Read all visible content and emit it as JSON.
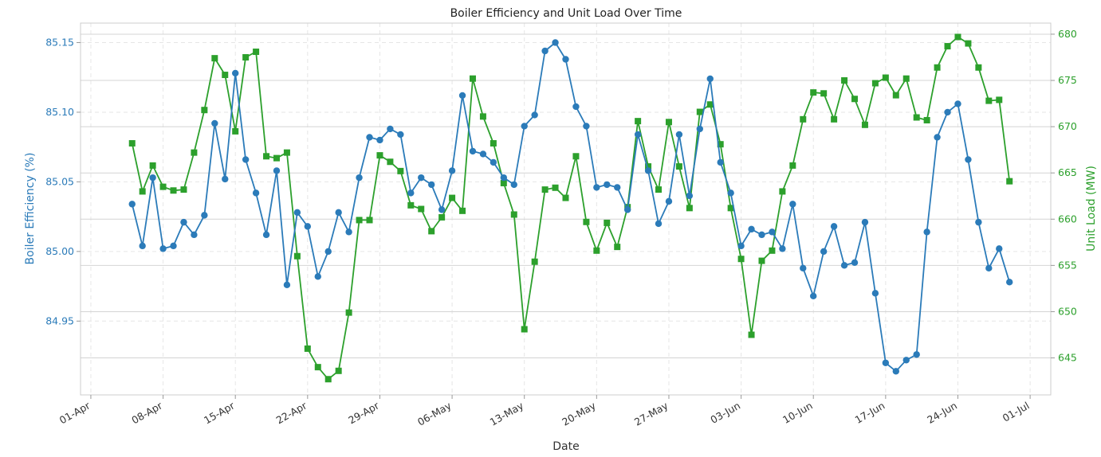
{
  "chart_data": {
    "type": "line",
    "title": "Boiler Efficiency and Unit Load Over Time",
    "xlabel": "Date",
    "ylabel_left": "Boiler Efficiency (%)",
    "ylabel_right": "Unit Load (MW)",
    "x_ticks": [
      {
        "date": "2024-04-01",
        "label": "01-Apr"
      },
      {
        "date": "2024-04-08",
        "label": "08-Apr"
      },
      {
        "date": "2024-04-15",
        "label": "15-Apr"
      },
      {
        "date": "2024-04-22",
        "label": "22-Apr"
      },
      {
        "date": "2024-04-29",
        "label": "29-Apr"
      },
      {
        "date": "2024-05-06",
        "label": "06-May"
      },
      {
        "date": "2024-05-13",
        "label": "13-May"
      },
      {
        "date": "2024-05-20",
        "label": "20-May"
      },
      {
        "date": "2024-05-27",
        "label": "27-May"
      },
      {
        "date": "2024-06-03",
        "label": "03-Jun"
      },
      {
        "date": "2024-06-10",
        "label": "10-Jun"
      },
      {
        "date": "2024-06-17",
        "label": "17-Jun"
      },
      {
        "date": "2024-06-24",
        "label": "24-Jun"
      },
      {
        "date": "2024-07-01",
        "label": "01-Jul"
      }
    ],
    "xlim": [
      "2024-03-31",
      "2024-07-03"
    ],
    "y_left": {
      "lim": [
        84.897,
        85.164
      ],
      "ticks": [
        84.95,
        85.0,
        85.05,
        85.1,
        85.15
      ],
      "tick_labels": [
        "84.95",
        "85.00",
        "85.05",
        "85.10",
        "85.15"
      ]
    },
    "y_right": {
      "lim": [
        641.0,
        681.2
      ],
      "ticks": [
        645,
        650,
        655,
        660,
        665,
        670,
        675,
        680
      ],
      "tick_labels": [
        "645",
        "650",
        "655",
        "660",
        "665",
        "670",
        "675",
        "680"
      ]
    },
    "grid": true,
    "dates": [
      "2024-04-05",
      "2024-04-06",
      "2024-04-07",
      "2024-04-08",
      "2024-04-09",
      "2024-04-10",
      "2024-04-11",
      "2024-04-12",
      "2024-04-13",
      "2024-04-14",
      "2024-04-15",
      "2024-04-16",
      "2024-04-17",
      "2024-04-18",
      "2024-04-19",
      "2024-04-20",
      "2024-04-21",
      "2024-04-22",
      "2024-04-23",
      "2024-04-24",
      "2024-04-25",
      "2024-04-26",
      "2024-04-27",
      "2024-04-28",
      "2024-04-29",
      "2024-04-30",
      "2024-05-01",
      "2024-05-02",
      "2024-05-03",
      "2024-05-04",
      "2024-05-05",
      "2024-05-06",
      "2024-05-07",
      "2024-05-08",
      "2024-05-09",
      "2024-05-10",
      "2024-05-11",
      "2024-05-12",
      "2024-05-13",
      "2024-05-14",
      "2024-05-15",
      "2024-05-16",
      "2024-05-17",
      "2024-05-18",
      "2024-05-19",
      "2024-05-20",
      "2024-05-21",
      "2024-05-22",
      "2024-05-23",
      "2024-05-24",
      "2024-05-25",
      "2024-05-26",
      "2024-05-27",
      "2024-05-28",
      "2024-05-29",
      "2024-05-30",
      "2024-05-31",
      "2024-06-01",
      "2024-06-02",
      "2024-06-03",
      "2024-06-04",
      "2024-06-05",
      "2024-06-06",
      "2024-06-07",
      "2024-06-08",
      "2024-06-09",
      "2024-06-10",
      "2024-06-11",
      "2024-06-12",
      "2024-06-13",
      "2024-06-14",
      "2024-06-15",
      "2024-06-16",
      "2024-06-17",
      "2024-06-18",
      "2024-06-19",
      "2024-06-20",
      "2024-06-21",
      "2024-06-22",
      "2024-06-23",
      "2024-06-24",
      "2024-06-25",
      "2024-06-26",
      "2024-06-27",
      "2024-06-28",
      "2024-06-29"
    ],
    "series": [
      {
        "name": "Boiler Efficiency (%)",
        "axis": "left",
        "color": "#2b7bb9",
        "marker": "circle",
        "values": [
          85.034,
          85.004,
          85.053,
          85.002,
          85.004,
          85.021,
          85.012,
          85.026,
          85.092,
          85.052,
          85.128,
          85.066,
          85.042,
          85.012,
          85.058,
          84.976,
          85.028,
          85.018,
          84.982,
          85.0,
          85.028,
          85.014,
          85.053,
          85.082,
          85.08,
          85.088,
          85.084,
          85.042,
          85.053,
          85.048,
          85.03,
          85.058,
          85.112,
          85.072,
          85.07,
          85.064,
          85.053,
          85.048,
          85.09,
          85.098,
          85.144,
          85.15,
          85.138,
          85.104,
          85.09,
          85.046,
          85.048,
          85.046,
          85.03,
          85.084,
          85.058,
          85.02,
          85.036,
          85.084,
          85.04,
          85.088,
          85.124,
          85.064,
          85.042,
          85.004,
          85.016,
          85.012,
          85.014,
          85.002,
          85.034,
          84.988,
          84.968,
          85.0,
          85.018,
          84.99,
          84.992,
          85.021,
          84.97,
          84.92,
          84.914,
          84.922,
          84.926,
          85.014,
          85.082,
          85.1,
          85.106,
          85.066,
          85.021,
          84.988,
          85.002,
          84.978
        ]
      },
      {
        "name": "Unit Load (MW)",
        "axis": "right",
        "color": "#2ca02c",
        "marker": "square",
        "values": [
          668.2,
          663.0,
          665.8,
          663.5,
          663.1,
          663.2,
          667.2,
          671.8,
          677.4,
          675.6,
          669.5,
          677.5,
          678.1,
          666.8,
          666.6,
          667.2,
          656.0,
          646.0,
          644.0,
          642.7,
          643.6,
          649.9,
          659.9,
          659.9,
          666.9,
          666.2,
          665.2,
          661.5,
          661.1,
          658.7,
          660.2,
          662.3,
          660.9,
          675.2,
          671.1,
          668.2,
          663.9,
          660.5,
          648.1,
          655.4,
          663.2,
          663.4,
          662.3,
          666.8,
          659.7,
          656.6,
          659.6,
          657.0,
          661.3,
          670.6,
          665.7,
          663.2,
          670.5,
          665.7,
          661.2,
          671.6,
          672.4,
          668.1,
          661.2,
          655.7,
          647.5,
          655.5,
          656.6,
          663.0,
          665.8,
          670.8,
          673.7,
          673.6,
          670.8,
          675.0,
          673.0,
          670.2,
          674.7,
          675.3,
          673.4,
          675.2,
          671.0,
          670.7,
          676.4,
          678.7,
          679.7,
          679.0,
          676.4,
          672.8,
          672.9,
          664.1
        ]
      }
    ]
  }
}
